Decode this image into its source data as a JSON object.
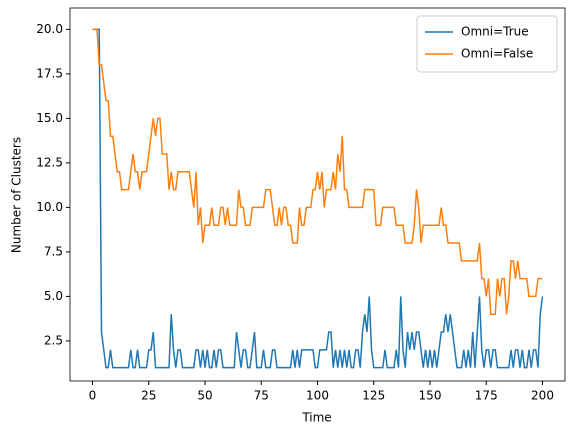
{
  "chart_data": {
    "type": "line",
    "xlabel": "Time",
    "ylabel": "Number of Clusters",
    "xlim": [
      -10,
      210
    ],
    "ylim": [
      0.25,
      21.2
    ],
    "xticks": [
      0,
      25,
      50,
      75,
      100,
      125,
      150,
      175,
      200
    ],
    "yticks": [
      2.5,
      {
        "value": 5,
        "label": "5.0"
      },
      7.5,
      {
        "value": 10,
        "label": "10.0"
      },
      12.5,
      {
        "value": 15,
        "label": "15.0"
      },
      17.5,
      {
        "value": 20,
        "label": "20.0"
      }
    ],
    "legend": "upper right",
    "grid": false,
    "x": [
      0,
      1,
      2,
      3,
      4,
      5,
      6,
      7,
      8,
      9,
      10,
      11,
      12,
      13,
      14,
      15,
      16,
      17,
      18,
      19,
      20,
      21,
      22,
      23,
      24,
      25,
      26,
      27,
      28,
      29,
      30,
      31,
      32,
      33,
      34,
      35,
      36,
      37,
      38,
      39,
      40,
      41,
      42,
      43,
      44,
      45,
      46,
      47,
      48,
      49,
      50,
      51,
      52,
      53,
      54,
      55,
      56,
      57,
      58,
      59,
      60,
      61,
      62,
      63,
      64,
      65,
      66,
      67,
      68,
      69,
      70,
      71,
      72,
      73,
      74,
      75,
      76,
      77,
      78,
      79,
      80,
      81,
      82,
      83,
      84,
      85,
      86,
      87,
      88,
      89,
      90,
      91,
      92,
      93,
      94,
      95,
      96,
      97,
      98,
      99,
      100,
      101,
      102,
      103,
      104,
      105,
      106,
      107,
      108,
      109,
      110,
      111,
      112,
      113,
      114,
      115,
      116,
      117,
      118,
      119,
      120,
      121,
      122,
      123,
      124,
      125,
      126,
      127,
      128,
      129,
      130,
      131,
      132,
      133,
      134,
      135,
      136,
      137,
      138,
      139,
      140,
      141,
      142,
      143,
      144,
      145,
      146,
      147,
      148,
      149,
      150,
      151,
      152,
      153,
      154,
      155,
      156,
      157,
      158,
      159,
      160,
      161,
      162,
      163,
      164,
      165,
      166,
      167,
      168,
      169,
      170,
      171,
      172,
      173,
      174,
      175,
      176,
      177,
      178,
      179,
      180,
      181,
      182,
      183,
      184,
      185,
      186,
      187,
      188,
      189,
      190,
      191,
      192,
      193,
      194,
      195,
      196,
      197,
      198,
      199,
      200
    ],
    "series": [
      {
        "name": "Omni=True",
        "color": "#1f77b4",
        "values": [
          20,
          20,
          20,
          20,
          3,
          2,
          1,
          1,
          2,
          1,
          1,
          1,
          1,
          1,
          1,
          1,
          1,
          2,
          1,
          1,
          2,
          1,
          1,
          1,
          1,
          2,
          2,
          3,
          1,
          1,
          1,
          1,
          1,
          1,
          1,
          4,
          2,
          1,
          2,
          2,
          1,
          1,
          1,
          1,
          1,
          1,
          2,
          2,
          1,
          2,
          1,
          2,
          1,
          1,
          2,
          1,
          2,
          2,
          1,
          1,
          1,
          1,
          1,
          1,
          3,
          2,
          1,
          2,
          2,
          1,
          1,
          2,
          3,
          1,
          1,
          1,
          2,
          1,
          1,
          1,
          2,
          2,
          1,
          1,
          1,
          1,
          1,
          1,
          1,
          2,
          1,
          2,
          1,
          2,
          2,
          2,
          2,
          2,
          2,
          1,
          1,
          2,
          2,
          2,
          2,
          3,
          3,
          1,
          2,
          1,
          2,
          1,
          2,
          1,
          2,
          1,
          1,
          2,
          2,
          1,
          3,
          4,
          3,
          5,
          2,
          1,
          1,
          1,
          1,
          1,
          2,
          1,
          1,
          1,
          1,
          2,
          1,
          5,
          2,
          1,
          3,
          2,
          3,
          2,
          3,
          3,
          2,
          1,
          2,
          1,
          2,
          1,
          2,
          1,
          2,
          3,
          3,
          4,
          3,
          4,
          3,
          2,
          1,
          1,
          1,
          2,
          1,
          2,
          1,
          3,
          1,
          3,
          5,
          2,
          1,
          2,
          2,
          1,
          2,
          2,
          1,
          1,
          1,
          1,
          1,
          1,
          2,
          1,
          2,
          2,
          1,
          2,
          1,
          1,
          2,
          1,
          2,
          2,
          1,
          4,
          5
        ]
      },
      {
        "name": "Omni=False",
        "color": "#ff7f0e",
        "values": [
          20,
          20,
          20,
          18,
          18,
          17,
          16,
          16,
          14,
          14,
          13,
          12,
          12,
          11,
          11,
          11,
          11,
          12,
          13,
          12,
          12,
          11,
          12,
          12,
          12,
          13,
          14,
          15,
          14,
          15,
          15,
          13,
          13,
          13,
          11,
          12,
          11,
          11,
          12,
          12,
          12,
          12,
          12,
          12,
          11,
          10,
          12,
          9,
          10,
          8,
          9,
          9,
          9,
          10,
          9,
          9,
          9,
          10,
          10,
          9,
          10,
          9,
          9,
          9,
          9,
          11,
          10,
          10,
          9,
          9,
          9,
          10,
          10,
          10,
          10,
          10,
          10,
          11,
          11,
          11,
          10,
          9,
          9,
          10,
          9,
          10,
          10,
          9,
          9,
          8,
          8,
          8,
          10,
          9,
          9,
          10,
          10,
          10,
          11,
          11,
          12,
          11,
          12,
          10,
          11,
          11,
          11,
          12,
          11,
          13,
          12,
          14,
          11,
          11,
          10,
          10,
          10,
          10,
          10,
          10,
          10,
          11,
          11,
          11,
          11,
          11,
          9,
          9,
          9,
          10,
          10,
          10,
          10,
          10,
          10,
          9,
          9,
          9,
          9,
          8,
          8,
          8,
          8,
          9,
          11,
          10,
          8,
          9,
          9,
          9,
          9,
          9,
          9,
          9,
          9,
          10,
          9,
          9,
          8,
          8,
          8,
          8,
          8,
          8,
          7,
          7,
          7,
          7,
          7,
          7,
          7,
          7,
          8,
          6,
          6,
          5,
          6,
          4,
          4,
          4,
          6,
          5,
          6,
          6,
          4,
          5,
          7,
          7,
          6,
          7,
          6,
          6,
          6,
          6,
          5,
          5,
          5,
          5,
          6,
          6,
          6
        ]
      }
    ]
  }
}
